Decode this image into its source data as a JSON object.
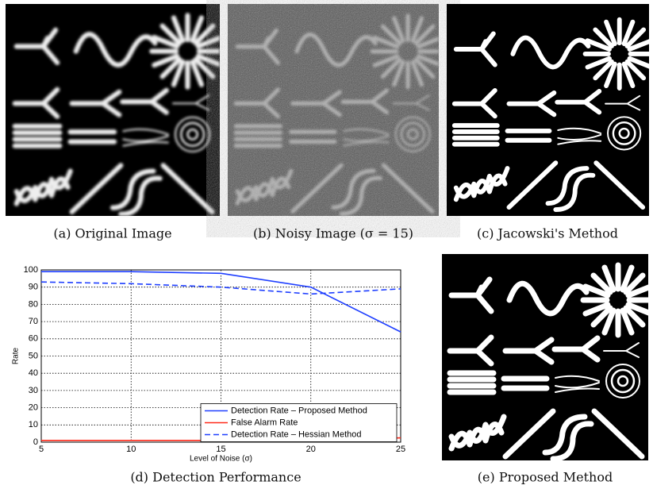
{
  "captions": {
    "a": "(a) Original Image",
    "b": "(b) Noisy Image (σ = 15)",
    "c": "(c) Jacowski's Method",
    "d": "(d) Detection Performance",
    "e": "(e) Proposed Method"
  },
  "chart_data": {
    "type": "line",
    "xlabel": "Level of Noise (σ)",
    "ylabel": "Rate",
    "x": [
      5,
      10,
      15,
      20,
      25
    ],
    "series": [
      {
        "name": "Detection Rate – Proposed Method",
        "color": "#1f3fff",
        "linestyle": "solid",
        "values": [
          99,
          99,
          98,
          90,
          64
        ]
      },
      {
        "name": "False Alarm Rate",
        "color": "#ff2a1a",
        "linestyle": "solid",
        "values": [
          1,
          1,
          1,
          1,
          2.5
        ]
      },
      {
        "name": "Detection Rate – Hessian Method",
        "color": "#1f3fff",
        "linestyle": "dashed",
        "values": [
          93,
          92,
          90,
          86,
          89
        ]
      }
    ],
    "xlim": [
      5,
      25
    ],
    "xticks": [
      5,
      10,
      15,
      20,
      25
    ],
    "ylim": [
      0,
      100
    ],
    "yticks": [
      0,
      10,
      20,
      30,
      40,
      50,
      60,
      70,
      80,
      90,
      100
    ],
    "grid": true,
    "legend": "center right"
  }
}
